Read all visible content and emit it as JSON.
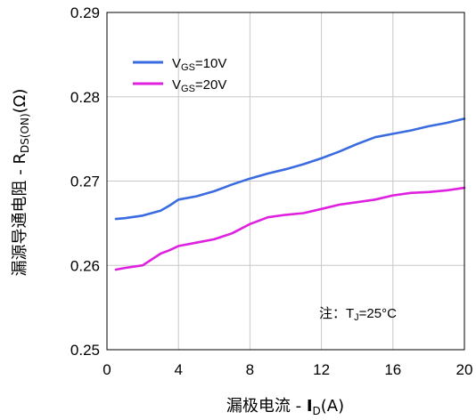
{
  "chart_data": {
    "type": "line",
    "xlabel": "漏极电流 - I_D(A)",
    "ylabel": "漏源导通电阻 - R_DS(ON)(Ω)",
    "xlabel_parts": {
      "prefix": "漏极电流 - ",
      "main": "I",
      "sub": "D",
      "suffix": "(A)"
    },
    "ylabel_parts": {
      "prefix": "漏源导通电阻 - ",
      "main": "R",
      "sub": "DS(ON)",
      "suffix": "(Ω)"
    },
    "xlim": [
      0,
      20
    ],
    "ylim": [
      0.25,
      0.29
    ],
    "x_ticks": [
      "0",
      "4",
      "8",
      "12",
      "16",
      "20"
    ],
    "y_ticks": [
      "0.25",
      "0.26",
      "0.27",
      "0.28",
      "0.29"
    ],
    "grid": true,
    "legend_position": "top-left",
    "series": [
      {
        "name": "VGS=10V",
        "name_parts": {
          "main": "V",
          "sub": "GS",
          "suffix": "=10V"
        },
        "color": "#3a6be0",
        "x": [
          0.5,
          1,
          2,
          3,
          3.5,
          4,
          5,
          6,
          7,
          8,
          9,
          10,
          11,
          12,
          13,
          14,
          15,
          16,
          17,
          18,
          19,
          20
        ],
        "y": [
          0.2655,
          0.2656,
          0.2659,
          0.2665,
          0.2671,
          0.2678,
          0.2682,
          0.2688,
          0.2696,
          0.2703,
          0.2709,
          0.2714,
          0.272,
          0.2727,
          0.2735,
          0.2744,
          0.2752,
          0.2756,
          0.276,
          0.2765,
          0.2769,
          0.2774
        ]
      },
      {
        "name": "VGS=20V",
        "name_parts": {
          "main": "V",
          "sub": "GS",
          "suffix": "=20V"
        },
        "color": "#e020e0",
        "x": [
          0.5,
          1,
          2,
          3,
          3.5,
          4,
          5,
          6,
          7,
          8,
          9,
          10,
          11,
          12,
          13,
          14,
          15,
          16,
          17,
          18,
          19,
          20
        ],
        "y": [
          0.2595,
          0.2597,
          0.26,
          0.2614,
          0.2618,
          0.2623,
          0.2627,
          0.2631,
          0.2638,
          0.2649,
          0.2657,
          0.266,
          0.2662,
          0.2667,
          0.2672,
          0.2675,
          0.2678,
          0.2683,
          0.2686,
          0.2687,
          0.2689,
          0.2692
        ]
      }
    ],
    "annotation": {
      "text": "注：TJ=25°C",
      "parts": {
        "prefix": "注：T",
        "sub": "J",
        "suffix": "=25°C"
      }
    }
  }
}
